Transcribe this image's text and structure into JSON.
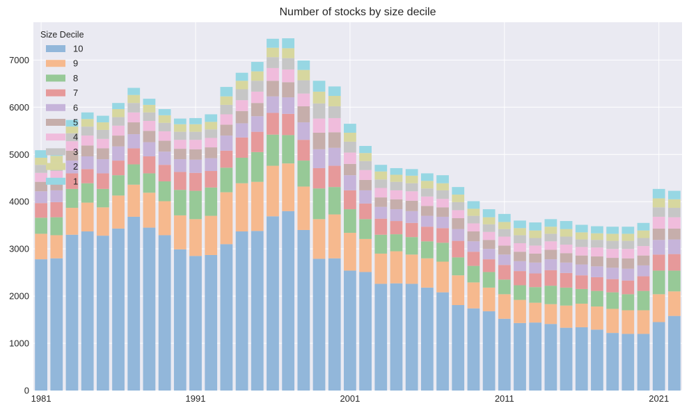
{
  "chart_data": {
    "type": "bar",
    "stacked": true,
    "title": "Number of stocks by size decile",
    "xlabel": "",
    "ylabel": "",
    "ylim": [
      0,
      7800
    ],
    "xlim": [
      1980.5,
      2022.5
    ],
    "yticks": [
      0,
      1000,
      2000,
      3000,
      4000,
      5000,
      6000,
      7000
    ],
    "xticks": [
      1981,
      1991,
      2001,
      2011,
      2021
    ],
    "grid": true,
    "legend_title": "Size Decile",
    "legend_placement": "top-left",
    "categories": [
      1981,
      1982,
      1983,
      1984,
      1985,
      1986,
      1987,
      1988,
      1989,
      1990,
      1991,
      1992,
      1993,
      1994,
      1995,
      1996,
      1997,
      1998,
      1999,
      2000,
      2001,
      2002,
      2003,
      2004,
      2005,
      2006,
      2007,
      2008,
      2009,
      2010,
      2011,
      2012,
      2013,
      2014,
      2015,
      2016,
      2017,
      2018,
      2019,
      2020,
      2021,
      2022
    ],
    "series": [
      {
        "name": "10",
        "color": "#92b7da",
        "values": [
          2780,
          2800,
          3300,
          3370,
          3280,
          3430,
          3680,
          3450,
          3290,
          2990,
          2850,
          2870,
          3100,
          3370,
          3380,
          3690,
          3800,
          3400,
          2790,
          2800,
          2540,
          2510,
          2260,
          2270,
          2260,
          2180,
          2080,
          1810,
          1740,
          1680,
          1520,
          1430,
          1440,
          1410,
          1330,
          1340,
          1290,
          1220,
          1200,
          1200,
          1450,
          1580
        ]
      },
      {
        "name": "9",
        "color": "#f6b98e",
        "values": [
          540,
          490,
          570,
          610,
          600,
          700,
          680,
          740,
          720,
          720,
          780,
          830,
          1100,
          1020,
          1040,
          1070,
          1010,
          920,
          840,
          930,
          800,
          700,
          640,
          680,
          620,
          620,
          650,
          630,
          550,
          500,
          520,
          490,
          420,
          420,
          470,
          500,
          490,
          510,
          500,
          500,
          590,
          520
        ]
      },
      {
        "name": "8",
        "color": "#97c997",
        "values": [
          340,
          380,
          400,
          410,
          390,
          430,
          430,
          410,
          420,
          540,
          600,
          600,
          520,
          540,
          630,
          660,
          600,
          550,
          650,
          580,
          500,
          420,
          400,
          360,
          370,
          360,
          400,
          380,
          350,
          330,
          310,
          310,
          330,
          390,
          380,
          310,
          330,
          350,
          340,
          410,
          500,
          440
        ]
      },
      {
        "name": "7",
        "color": "#e6999a",
        "values": [
          310,
          320,
          330,
          300,
          330,
          310,
          340,
          360,
          350,
          380,
          380,
          350,
          360,
          430,
          430,
          460,
          450,
          440,
          430,
          450,
          400,
          330,
          340,
          280,
          300,
          310,
          310,
          350,
          300,
          270,
          310,
          300,
          290,
          330,
          310,
          290,
          290,
          280,
          290,
          310,
          340,
          350
        ]
      },
      {
        "name": "6",
        "color": "#c6b4da",
        "values": [
          250,
          250,
          270,
          270,
          300,
          300,
          300,
          300,
          280,
          270,
          280,
          270,
          320,
          300,
          330,
          350,
          350,
          370,
          400,
          380,
          320,
          280,
          250,
          250,
          250,
          230,
          240,
          250,
          220,
          220,
          220,
          210,
          230,
          230,
          220,
          230,
          230,
          240,
          250,
          230,
          310,
          310
        ]
      },
      {
        "name": "5",
        "color": "#c6aeab",
        "values": [
          200,
          220,
          210,
          230,
          230,
          230,
          250,
          240,
          230,
          220,
          220,
          230,
          230,
          260,
          280,
          330,
          320,
          340,
          350,
          330,
          240,
          220,
          200,
          210,
          220,
          210,
          200,
          230,
          210,
          190,
          190,
          200,
          190,
          200,
          200,
          190,
          210,
          210,
          220,
          210,
          240,
          230
        ]
      },
      {
        "name": "4",
        "color": "#f0bcdc",
        "values": [
          190,
          190,
          200,
          210,
          200,
          210,
          210,
          210,
          200,
          190,
          200,
          200,
          220,
          230,
          240,
          270,
          270,
          270,
          300,
          300,
          240,
          210,
          200,
          190,
          200,
          200,
          180,
          170,
          170,
          170,
          190,
          180,
          170,
          180,
          180,
          180,
          190,
          190,
          200,
          200,
          250,
          240
        ]
      },
      {
        "name": "3",
        "color": "#c6c6c6",
        "values": [
          170,
          170,
          170,
          190,
          190,
          180,
          200,
          180,
          180,
          170,
          170,
          180,
          200,
          230,
          230,
          230,
          240,
          280,
          320,
          250,
          230,
          190,
          180,
          180,
          170,
          170,
          180,
          170,
          160,
          160,
          160,
          170,
          160,
          160,
          170,
          160,
          160,
          170,
          170,
          170,
          200,
          200
        ]
      },
      {
        "name": "2",
        "color": "#d7d79f",
        "values": [
          150,
          150,
          140,
          160,
          160,
          170,
          170,
          160,
          160,
          160,
          160,
          160,
          180,
          180,
          200,
          200,
          210,
          220,
          250,
          220,
          190,
          170,
          170,
          150,
          160,
          160,
          150,
          160,
          150,
          150,
          150,
          150,
          160,
          150,
          160,
          150,
          140,
          150,
          150,
          160,
          190,
          180
        ]
      },
      {
        "name": "1",
        "color": "#97d7e3",
        "values": [
          160,
          140,
          140,
          140,
          140,
          130,
          150,
          130,
          130,
          120,
          130,
          160,
          200,
          170,
          200,
          190,
          210,
          200,
          230,
          200,
          190,
          150,
          140,
          140,
          140,
          160,
          170,
          160,
          160,
          170,
          170,
          160,
          170,
          160,
          170,
          160,
          150,
          150,
          150,
          160,
          200,
          180
        ]
      }
    ]
  }
}
